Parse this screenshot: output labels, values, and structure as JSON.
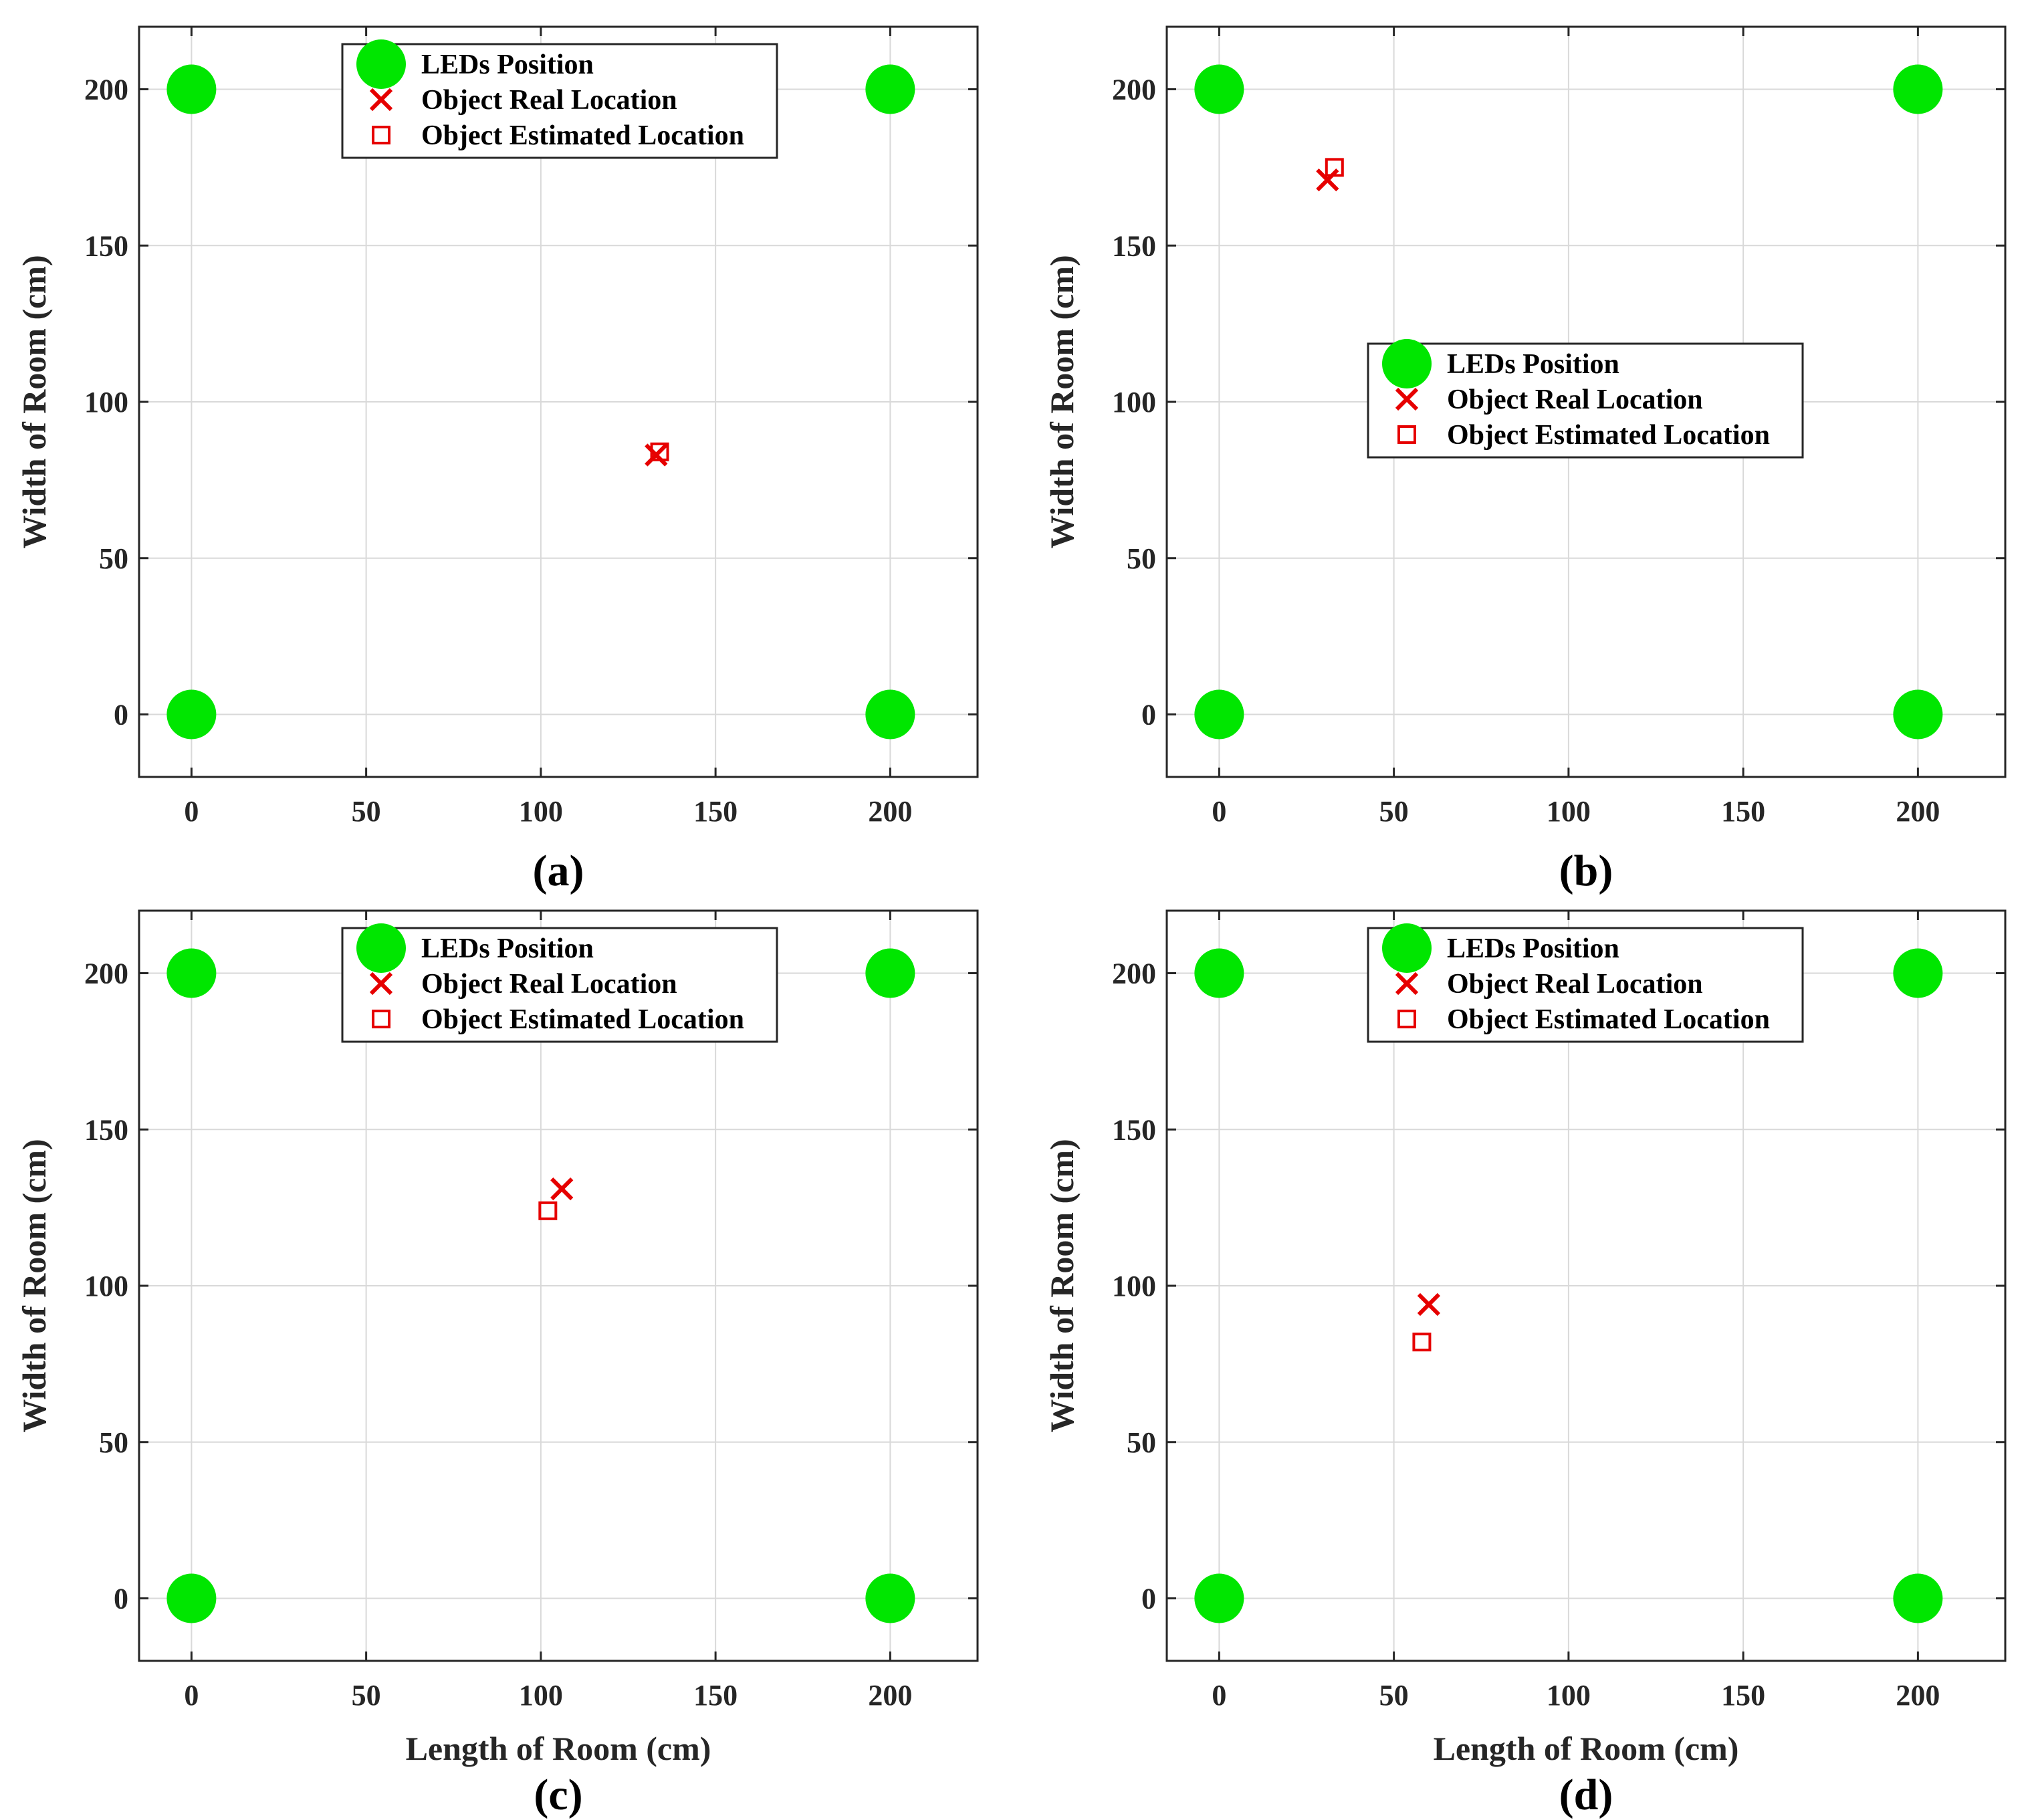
{
  "colors": {
    "led": "#00e600",
    "real": "#e60000",
    "estimated": "#e60000",
    "grid": "#d9d9d9",
    "axes": "#262626"
  },
  "legend": {
    "entries": [
      "LEDs Position",
      "Object Real Location",
      "Object Estimated Location"
    ],
    "icons": [
      "filled-circle-marker",
      "x-marker",
      "square-marker"
    ]
  },
  "chart_data": [
    {
      "type": "scatter",
      "panel_label": "(a)",
      "xlabel": "",
      "ylabel": "Width of Room (cm)",
      "xlim": [
        -15,
        225
      ],
      "ylim": [
        -20,
        220
      ],
      "xticks": [
        0,
        50,
        100,
        150,
        200
      ],
      "yticks": [
        0,
        50,
        100,
        150,
        200
      ],
      "grid": true,
      "legend_position": "top-center",
      "series": [
        {
          "name": "LEDs Position",
          "marker": "circle",
          "points": [
            [
              0,
              0
            ],
            [
              0,
              200
            ],
            [
              200,
              0
            ],
            [
              200,
              200
            ]
          ]
        },
        {
          "name": "Object Real Location",
          "marker": "x",
          "points": [
            [
              133,
              83
            ]
          ]
        },
        {
          "name": "Object Estimated Location",
          "marker": "square",
          "points": [
            [
              134,
              84
            ]
          ]
        }
      ]
    },
    {
      "type": "scatter",
      "panel_label": "(b)",
      "xlabel": "",
      "ylabel": "Width of Room (cm)",
      "xlim": [
        -15,
        225
      ],
      "ylim": [
        -20,
        220
      ],
      "xticks": [
        0,
        50,
        100,
        150,
        200
      ],
      "yticks": [
        0,
        50,
        100,
        150,
        200
      ],
      "grid": true,
      "legend_position": "center",
      "series": [
        {
          "name": "LEDs Position",
          "marker": "circle",
          "points": [
            [
              0,
              0
            ],
            [
              0,
              200
            ],
            [
              200,
              0
            ],
            [
              200,
              200
            ]
          ]
        },
        {
          "name": "Object Real Location",
          "marker": "x",
          "points": [
            [
              31,
              171
            ]
          ]
        },
        {
          "name": "Object Estimated Location",
          "marker": "square",
          "points": [
            [
              33,
              175
            ]
          ]
        }
      ]
    },
    {
      "type": "scatter",
      "panel_label": "(c)",
      "xlabel": "Length of Room (cm)",
      "ylabel": "Width of Room (cm)",
      "xlim": [
        -15,
        225
      ],
      "ylim": [
        -20,
        220
      ],
      "xticks": [
        0,
        50,
        100,
        150,
        200
      ],
      "yticks": [
        0,
        50,
        100,
        150,
        200
      ],
      "grid": true,
      "legend_position": "top-center",
      "series": [
        {
          "name": "LEDs Position",
          "marker": "circle",
          "points": [
            [
              0,
              0
            ],
            [
              0,
              200
            ],
            [
              200,
              0
            ],
            [
              200,
              200
            ]
          ]
        },
        {
          "name": "Object Real Location",
          "marker": "x",
          "points": [
            [
              106,
              131
            ]
          ]
        },
        {
          "name": "Object Estimated Location",
          "marker": "square",
          "points": [
            [
              102,
              124
            ]
          ]
        }
      ]
    },
    {
      "type": "scatter",
      "panel_label": "(d)",
      "xlabel": "Length of Room (cm)",
      "ylabel": "Width of Room (cm)",
      "xlim": [
        -15,
        225
      ],
      "ylim": [
        -20,
        220
      ],
      "xticks": [
        0,
        50,
        100,
        150,
        200
      ],
      "yticks": [
        0,
        50,
        100,
        150,
        200
      ],
      "grid": true,
      "legend_position": "top-center",
      "series": [
        {
          "name": "LEDs Position",
          "marker": "circle",
          "points": [
            [
              0,
              0
            ],
            [
              0,
              200
            ],
            [
              200,
              0
            ],
            [
              200,
              200
            ]
          ]
        },
        {
          "name": "Object Real Location",
          "marker": "x",
          "points": [
            [
              60,
              94
            ]
          ]
        },
        {
          "name": "Object Estimated Location",
          "marker": "square",
          "points": [
            [
              58,
              82
            ]
          ]
        }
      ]
    }
  ]
}
